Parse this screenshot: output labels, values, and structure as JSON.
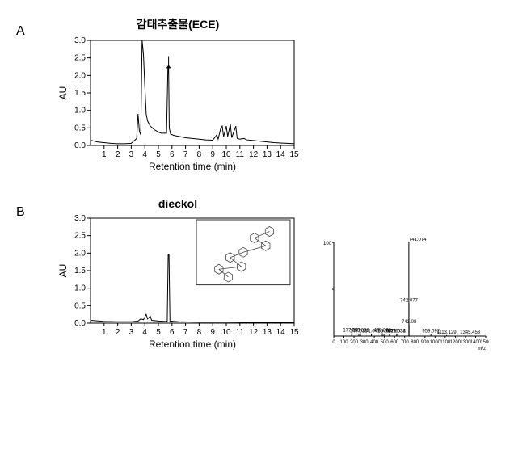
{
  "background_color": "#ffffff",
  "text_color": "#000000",
  "panel_a": {
    "label": "A",
    "title": "감태추출물(ECE)",
    "title_fontsize": 14,
    "xlabel": "Retention time (min)",
    "ylabel": "AU",
    "label_fontsize": 12,
    "xlim": [
      0,
      15
    ],
    "ylim": [
      0,
      3.0
    ],
    "xtick_step": 1,
    "ytick_step": 0.5,
    "line_color": "#000000",
    "chromatogram": [
      [
        0.0,
        0.15
      ],
      [
        0.5,
        0.1
      ],
      [
        1.0,
        0.08
      ],
      [
        1.5,
        0.06
      ],
      [
        2.0,
        0.05
      ],
      [
        2.5,
        0.05
      ],
      [
        3.0,
        0.06
      ],
      [
        3.4,
        0.2
      ],
      [
        3.5,
        0.9
      ],
      [
        3.6,
        0.4
      ],
      [
        3.7,
        0.3
      ],
      [
        3.8,
        3.0
      ],
      [
        3.9,
        2.6
      ],
      [
        4.0,
        1.7
      ],
      [
        4.1,
        0.9
      ],
      [
        4.2,
        0.7
      ],
      [
        4.4,
        0.55
      ],
      [
        4.7,
        0.45
      ],
      [
        5.0,
        0.38
      ],
      [
        5.2,
        0.35
      ],
      [
        5.6,
        0.35
      ],
      [
        5.7,
        2.2
      ],
      [
        5.75,
        2.3
      ],
      [
        5.8,
        0.5
      ],
      [
        5.9,
        0.32
      ],
      [
        6.2,
        0.28
      ],
      [
        6.6,
        0.25
      ],
      [
        7.0,
        0.22
      ],
      [
        7.5,
        0.2
      ],
      [
        8.0,
        0.18
      ],
      [
        8.5,
        0.16
      ],
      [
        9.0,
        0.15
      ],
      [
        9.3,
        0.3
      ],
      [
        9.4,
        0.18
      ],
      [
        9.6,
        0.5
      ],
      [
        9.7,
        0.55
      ],
      [
        9.8,
        0.25
      ],
      [
        10.0,
        0.55
      ],
      [
        10.1,
        0.25
      ],
      [
        10.3,
        0.6
      ],
      [
        10.4,
        0.22
      ],
      [
        10.7,
        0.55
      ],
      [
        10.8,
        0.2
      ],
      [
        11.0,
        0.18
      ],
      [
        11.3,
        0.2
      ],
      [
        11.5,
        0.16
      ],
      [
        12.0,
        0.14
      ],
      [
        12.5,
        0.12
      ],
      [
        13.0,
        0.1
      ],
      [
        13.5,
        0.08
      ],
      [
        14.0,
        0.07
      ],
      [
        14.5,
        0.06
      ],
      [
        15.0,
        0.05
      ]
    ],
    "arrow": {
      "x": 5.75,
      "y_from": 2.55,
      "y_to": 2.3
    }
  },
  "panel_b": {
    "label": "B",
    "title": "dieckol",
    "title_fontsize": 14,
    "xlabel": "Retention time (min)",
    "ylabel": "AU",
    "label_fontsize": 12,
    "xlim": [
      0,
      15
    ],
    "ylim": [
      0,
      3.0
    ],
    "xtick_step": 1,
    "ytick_step": 0.5,
    "line_color": "#000000",
    "chromatogram": [
      [
        0.0,
        0.08
      ],
      [
        1.0,
        0.05
      ],
      [
        2.0,
        0.04
      ],
      [
        3.0,
        0.04
      ],
      [
        3.5,
        0.06
      ],
      [
        3.7,
        0.12
      ],
      [
        3.9,
        0.1
      ],
      [
        4.1,
        0.25
      ],
      [
        4.2,
        0.12
      ],
      [
        4.4,
        0.2
      ],
      [
        4.5,
        0.08
      ],
      [
        5.0,
        0.06
      ],
      [
        5.5,
        0.05
      ],
      [
        5.65,
        0.06
      ],
      [
        5.72,
        1.95
      ],
      [
        5.78,
        1.95
      ],
      [
        5.85,
        0.06
      ],
      [
        6.5,
        0.04
      ],
      [
        8.0,
        0.03
      ],
      [
        10.0,
        0.03
      ],
      [
        12.0,
        0.02
      ],
      [
        15.0,
        0.02
      ]
    ],
    "inset_structure": {
      "name": "dieckol",
      "color": "#444444"
    }
  },
  "mass_spectrum": {
    "type": "mass-spectrum",
    "xlabel": "m/z",
    "xlim": [
      0,
      1500
    ],
    "ylim": [
      0,
      100
    ],
    "xtick_step": 100,
    "line_color": "#000000",
    "peaks": [
      {
        "mz": 177.091,
        "rel": 3
      },
      {
        "mz": 247.025,
        "rel": 2
      },
      {
        "mz": 263.091,
        "rel": 3
      },
      {
        "mz": 371.041,
        "rel": 2
      },
      {
        "mz": 495.056,
        "rel": 2
      },
      {
        "mz": 549.076,
        "rel": 2
      },
      {
        "mz": 479.063,
        "rel": 3
      },
      {
        "mz": 621.032,
        "rel": 2
      },
      {
        "mz": 623.034,
        "rel": 2
      },
      {
        "mz": 741.074,
        "rel": 100
      },
      {
        "mz": 742.077,
        "rel": 35
      },
      {
        "mz": 743.08,
        "rel": 12
      },
      {
        "mz": 959.092,
        "rel": 2
      },
      {
        "mz": 1113.129,
        "rel": 1
      },
      {
        "mz": 1345.453,
        "rel": 1
      }
    ]
  }
}
